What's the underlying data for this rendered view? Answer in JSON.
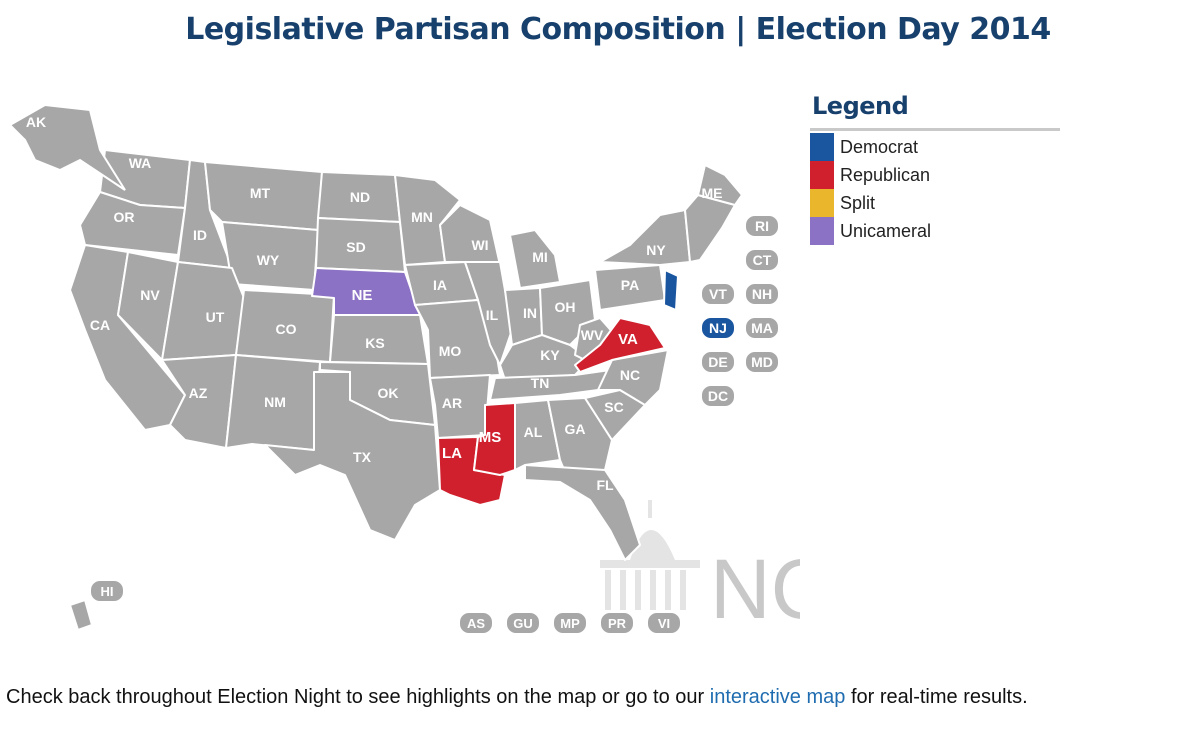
{
  "title": "Legislative Partisan Composition | Election Day 2014",
  "legend": {
    "title": "Legend",
    "items": [
      {
        "label": "Democrat",
        "color": "#1a56a0"
      },
      {
        "label": "Republican",
        "color": "#d0202e"
      },
      {
        "label": "Split",
        "color": "#e9b62c"
      },
      {
        "label": "Unicameral",
        "color": "#8c72c4"
      }
    ]
  },
  "map": {
    "default_color": "#a7a7a7",
    "states": {
      "AK": "AK",
      "WA": "WA",
      "OR": "OR",
      "ID": "ID",
      "MT": "MT",
      "ND": "ND",
      "MN": "MN",
      "WY": "WY",
      "SD": "SD",
      "WI": "WI",
      "MI": "MI",
      "NE": "NE",
      "IA": "IA",
      "NV": "NV",
      "UT": "UT",
      "CA": "CA",
      "CO": "CO",
      "KS": "KS",
      "IL": "IL",
      "IN": "IN",
      "OH": "OH",
      "MO": "MO",
      "KY": "KY",
      "WV": "WV",
      "VA": "VA",
      "PA": "PA",
      "NY": "NY",
      "ME": "ME",
      "AZ": "AZ",
      "NM": "NM",
      "OK": "OK",
      "AR": "AR",
      "TN": "TN",
      "NC": "NC",
      "SC": "SC",
      "TX": "TX",
      "LA": "LA",
      "MS": "MS",
      "AL": "AL",
      "GA": "GA",
      "FL": "FL",
      "HI": "HI"
    },
    "highlighted": [
      {
        "state": "NE",
        "party": "Unicameral",
        "color": "#8c72c4"
      },
      {
        "state": "VA",
        "party": "Republican",
        "color": "#d0202e"
      },
      {
        "state": "MS",
        "party": "Republican",
        "color": "#d0202e"
      },
      {
        "state": "LA",
        "party": "Republican",
        "color": "#d0202e"
      },
      {
        "state": "NJ",
        "party": "Democrat",
        "color": "#1a56a0"
      }
    ],
    "small_states": [
      "RI",
      "CT",
      "VT",
      "NH",
      "NJ",
      "MA",
      "DE",
      "MD",
      "DC"
    ],
    "territories": [
      "AS",
      "GU",
      "MP",
      "PR",
      "VI"
    ],
    "watermark": "NCSL"
  },
  "footer": {
    "text_before": "Check back throughout Election Night to see highlights on the map or go to our ",
    "link": "interactive map",
    "text_after": " for real-time results."
  }
}
